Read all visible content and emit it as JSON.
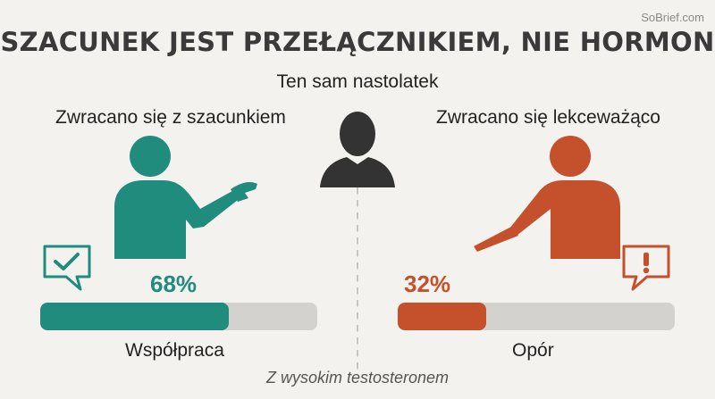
{
  "watermark": "SoBrief.com",
  "title": "SZACUNEK JEST PRZEŁĄCZNIKIEM, NIE HORMON",
  "subtitle": "Ten sam nastolatek",
  "left": {
    "label": "Zwracano się z szacunkiem",
    "percent_label": "68%",
    "percent": 68,
    "bar_label": "Współpraca",
    "color": "#1f8c7e",
    "figure_icon": "open-hand-person-icon",
    "bubble_icon": "checkmark-speech-bubble-icon"
  },
  "right": {
    "label": "Zwracano się lekceważąco",
    "percent_label": "32%",
    "percent": 32,
    "bar_label": "Opór",
    "color": "#c4502c",
    "figure_icon": "pointing-person-icon",
    "bubble_icon": "exclamation-speech-bubble-icon"
  },
  "center_icon": "teen-silhouette-icon",
  "footnote": "Z wysokim testosteronem"
}
